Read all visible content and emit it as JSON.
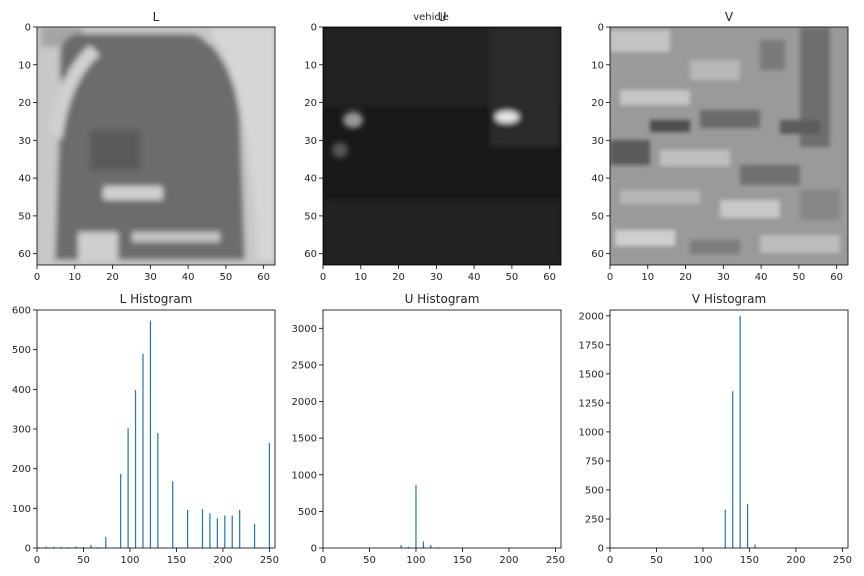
{
  "figure": {
    "suptitle": "vehicle"
  },
  "chart_data": [
    {
      "type": "heatmap",
      "title": "L",
      "colormap": "gray",
      "xlim": [
        0,
        63
      ],
      "ylim": [
        63,
        0
      ],
      "xticks": [
        0,
        10,
        20,
        30,
        40,
        50,
        60
      ],
      "yticks": [
        0,
        10,
        20,
        30,
        40,
        50,
        60
      ]
    },
    {
      "type": "heatmap",
      "title": "U",
      "colormap": "gray",
      "xlim": [
        0,
        63
      ],
      "ylim": [
        63,
        0
      ],
      "xticks": [
        0,
        10,
        20,
        30,
        40,
        50,
        60
      ],
      "yticks": [
        0,
        10,
        20,
        30,
        40,
        50,
        60
      ]
    },
    {
      "type": "heatmap",
      "title": "V",
      "colormap": "gray",
      "xlim": [
        0,
        63
      ],
      "ylim": [
        63,
        0
      ],
      "xticks": [
        0,
        10,
        20,
        30,
        40,
        50,
        60
      ],
      "yticks": [
        0,
        10,
        20,
        30,
        40,
        50,
        60
      ]
    },
    {
      "type": "bar",
      "title": "L Histogram",
      "color": "#1f77b4",
      "xlim": [
        0,
        256
      ],
      "ylim": [
        0,
        600
      ],
      "xticks": [
        0,
        50,
        100,
        150,
        200,
        250
      ],
      "yticks": [
        0,
        100,
        200,
        300,
        400,
        500,
        600
      ],
      "x": [
        2,
        10,
        18,
        26,
        34,
        42,
        50,
        58,
        66,
        74,
        82,
        90,
        98,
        106,
        114,
        122,
        130,
        138,
        146,
        154,
        162,
        170,
        178,
        186,
        194,
        202,
        210,
        218,
        226,
        234,
        242,
        250
      ],
      "values": [
        2,
        3,
        3,
        3,
        2,
        4,
        2,
        8,
        2,
        28,
        1,
        187,
        302,
        398,
        490,
        573,
        290,
        1,
        168,
        1,
        96,
        1,
        98,
        88,
        75,
        82,
        82,
        96,
        1,
        61,
        1,
        265
      ]
    },
    {
      "type": "bar",
      "title": "U Histogram",
      "color": "#1f77b4",
      "xlim": [
        0,
        256
      ],
      "ylim": [
        0,
        3250
      ],
      "xticks": [
        0,
        50,
        100,
        150,
        200,
        250
      ],
      "yticks": [
        0,
        500,
        1000,
        1500,
        2000,
        2500,
        3000
      ],
      "x": [
        84,
        92,
        100,
        108,
        116,
        124
      ],
      "values": [
        40,
        15,
        860,
        90,
        40,
        10
      ]
    },
    {
      "type": "bar",
      "title": "V Histogram",
      "color": "#1f77b4",
      "xlim": [
        0,
        256
      ],
      "ylim": [
        0,
        2050
      ],
      "xticks": [
        0,
        50,
        100,
        150,
        200,
        250
      ],
      "yticks": [
        0,
        250,
        500,
        750,
        1000,
        1250,
        1500,
        1750,
        2000
      ],
      "x": [
        124,
        132,
        140,
        148,
        156
      ],
      "values": [
        330,
        1350,
        2000,
        380,
        30
      ]
    }
  ]
}
